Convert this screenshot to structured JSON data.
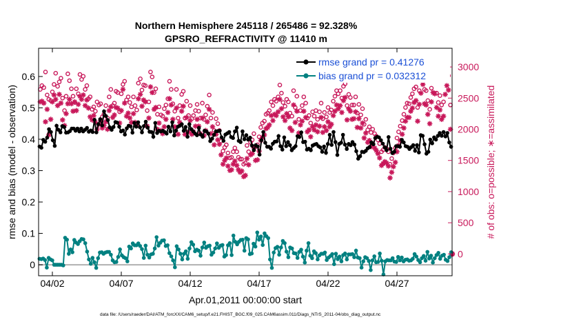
{
  "chart_data": {
    "type": "line",
    "title_line1": "Northern Hemisphere 245118 / 265486 = 92.328%",
    "title_line2": "GPSRO_REFRACTIVITY @ 11410 m",
    "xlabel": "Apr.01,2011 00:00:00 start",
    "ylabel_left": "rmse and bias (model - observation)",
    "ylabel_right": "# of obs: o=possible; ∗=assimilated",
    "footnote": "data file: /Users/raeder/DAI/ATM_forcXX/CAM6_setup/f.e21.FHIST_BGC.f09_025.CAM6assim.011/Diags_NTrS_2011-04/obs_diag_output.nc",
    "x_tick_labels": [
      "04/02",
      "04/07",
      "04/12",
      "04/17",
      "04/22",
      "04/27"
    ],
    "x_ticks_day": [
      2,
      7,
      12,
      17,
      22,
      27
    ],
    "xlim_day": [
      1.0,
      31.0
    ],
    "ylim_left": [
      -0.035,
      0.69
    ],
    "yticks_left": [
      0,
      0.1,
      0.2,
      0.3,
      0.4,
      0.5,
      0.6
    ],
    "ytick_labels_left": [
      "0",
      "0.1",
      "0.2",
      "0.3",
      "0.4",
      "0.5",
      "0.6"
    ],
    "ylim_right": [
      -350,
      3300
    ],
    "yticks_right": [
      0,
      500,
      1000,
      1500,
      2000,
      2500,
      3000
    ],
    "ytick_labels_right": [
      "0",
      "500",
      "1000",
      "1500",
      "2000",
      "2500",
      "3000"
    ],
    "legend": [
      {
        "name": "rmse grand pr = 0.41276",
        "color": "#000000"
      },
      {
        "name": "bias grand pr = 0.032312",
        "color": "#008080"
      }
    ],
    "colors": {
      "rmse": "#000000",
      "bias": "#008080",
      "obs": "#c8185a",
      "zero_line": "#b0b0b0"
    },
    "rmse_values": [
      0.377,
      0.373,
      0.398,
      0.392,
      0.405,
      0.432,
      0.423,
      0.397,
      0.379,
      0.443,
      0.43,
      0.422,
      0.442,
      0.439,
      0.421,
      0.422,
      0.426,
      0.434,
      0.434,
      0.427,
      0.434,
      0.425,
      0.434,
      0.425,
      0.43,
      0.436,
      0.424,
      0.428,
      0.423,
      0.462,
      0.422,
      0.448,
      0.464,
      0.444,
      0.489,
      0.474,
      0.461,
      0.438,
      0.43,
      0.439,
      0.455,
      0.453,
      0.44,
      0.425,
      0.428,
      0.415,
      0.435,
      0.443,
      0.441,
      0.421,
      0.452,
      0.44,
      0.454,
      0.438,
      0.422,
      0.442,
      0.456,
      0.437,
      0.424,
      0.423,
      0.408,
      0.452,
      0.42,
      0.427,
      0.425,
      0.427,
      0.423,
      0.418,
      0.44,
      0.425,
      0.454,
      0.412,
      0.428,
      0.44,
      0.443,
      0.448,
      0.427,
      0.439,
      0.408,
      0.448,
      0.432,
      0.425,
      0.418,
      0.413,
      0.436,
      0.415,
      0.408,
      0.427,
      0.425,
      0.418,
      0.394,
      0.402,
      0.414,
      0.425,
      0.426,
      0.427,
      0.406,
      0.395,
      0.415,
      0.419,
      0.423,
      0.407,
      0.404,
      0.425,
      0.437,
      0.395,
      0.391,
      0.425,
      0.4,
      0.413,
      0.399,
      0.405,
      0.38,
      0.365,
      0.381,
      0.377,
      0.351,
      0.397,
      0.423,
      0.389,
      0.376,
      0.376,
      0.37,
      0.386,
      0.392,
      0.393,
      0.41,
      0.378,
      0.367,
      0.406,
      0.378,
      0.391,
      0.381,
      0.365,
      0.372,
      0.378,
      0.41,
      0.407,
      0.422,
      0.391,
      0.392,
      0.367,
      0.37,
      0.365,
      0.38,
      0.383,
      0.385,
      0.378,
      0.374,
      0.36,
      0.377,
      0.357,
      0.385,
      0.414,
      0.382,
      0.423,
      0.391,
      0.35,
      0.385,
      0.389,
      0.414,
      0.383,
      0.369,
      0.385,
      0.381,
      0.391,
      0.383,
      0.362,
      0.338,
      0.346,
      0.36,
      0.359,
      0.363,
      0.371,
      0.375,
      0.39,
      0.384,
      0.404,
      0.408,
      0.406,
      0.397,
      0.386,
      0.374,
      0.365,
      0.407,
      0.37,
      0.356,
      0.36,
      0.378,
      0.378,
      0.376,
      0.398,
      0.39,
      0.378,
      0.376,
      0.369,
      0.375,
      0.381,
      0.363,
      0.381,
      0.358,
      0.413,
      0.411,
      0.384,
      0.354,
      0.36,
      0.399,
      0.387,
      0.406,
      0.399,
      0.411,
      0.42,
      0.411,
      0.423,
      0.409,
      0.42,
      0.39,
      0.376
    ],
    "bias_values": [
      0.019,
      0.018,
      0.02,
      0.015,
      -0.009,
      0.022,
      0.017,
      0.014,
      0.0,
      0.0,
      0.0,
      0.0,
      0.0,
      -0.002,
      0.086,
      0.08,
      0.035,
      0.049,
      0.04,
      0.079,
      0.071,
      0.066,
      0.075,
      0.082,
      0.081,
      0.069,
      0.042,
      0.017,
      0.003,
      0.022,
      0.008,
      -0.01,
      0.021,
      0.039,
      0.04,
      0.035,
      0.039,
      0.041,
      0.041,
      0.032,
      0.014,
      0.008,
      0.009,
      0.025,
      0.049,
      0.03,
      0.024,
      0.021,
      0.011,
      0.058,
      0.052,
      0.068,
      0.062,
      0.062,
      0.068,
      0.06,
      0.05,
      0.022,
      0.061,
      0.032,
      0.023,
      0.033,
      0.035,
      0.052,
      0.088,
      0.061,
      0.07,
      0.077,
      0.078,
      0.06,
      0.062,
      0.037,
      0.027,
      0.014,
      -0.008,
      0.059,
      0.049,
      0.035,
      0.017,
      0.035,
      0.043,
      0.019,
      0.052,
      0.072,
      0.064,
      0.043,
      0.048,
      0.045,
      0.029,
      0.055,
      0.071,
      0.054,
      0.059,
      0.061,
      0.032,
      0.039,
      0.052,
      0.068,
      0.054,
      0.061,
      0.063,
      0.026,
      0.031,
      0.062,
      0.069,
      0.031,
      0.093,
      0.073,
      0.065,
      0.073,
      0.079,
      0.08,
      0.045,
      0.085,
      0.081,
      0.034,
      0.036,
      0.067,
      0.058,
      0.103,
      0.08,
      0.09,
      0.063,
      0.1,
      0.091,
      0.085,
      0.017,
      -0.01,
      0.039,
      0.053,
      0.057,
      0.032,
      0.055,
      0.076,
      0.069,
      0.042,
      0.024,
      0.055,
      0.052,
      0.037,
      0.036,
      0.022,
      0.041,
      0.048,
      0.026,
      0.007,
      0.045,
      0.069,
      0.029,
      0.021,
      0.043,
      0.037,
      0.017,
      0.03,
      0.035,
      0.035,
      0.039,
      0.015,
      0.023,
      0.028,
      0.034,
      0.002,
      0.035,
      0.018,
      0.026,
      0.011,
      0.031,
      0.036,
      0.017,
      0.033,
      0.033,
      0.034,
      0.024,
      0.045,
      0.023,
      0.021,
      -0.009,
      0.011,
      0.024,
      0.021,
      0.012,
      -0.017,
      0.014,
      0.027,
      0.008,
      0.009,
      0.036,
      0.013,
      -0.031,
      0.011,
      0.015,
      0.014,
      0.014,
      0.021,
      0.01,
      0.009,
      0.025,
      0.014,
      0.023,
      0.011,
      0.016,
      0.017,
      0.013,
      0.014,
      0.019,
      0.034,
      0.026,
      0.015,
      0.008,
      0.021,
      0.028,
      0.013,
      0.041,
      0.02,
      0.029,
      0.007,
      0.021,
      0.031,
      0.038,
      0.019,
      0.029,
      0.032,
      0.016,
      0.012,
      0.024,
      0.04
    ],
    "possible_days": [
      1.12,
      1.24,
      1.38,
      1.5,
      1.62,
      1.74,
      1.88,
      2.0,
      2.12,
      2.24,
      2.38,
      2.5,
      2.62,
      2.74,
      2.88,
      3.0,
      3.12,
      3.24,
      3.38,
      3.5,
      3.62,
      3.74,
      3.88,
      4.0,
      4.12,
      4.24,
      4.38,
      4.5,
      4.62,
      4.74,
      4.88,
      5.0,
      5.12,
      5.24,
      5.38,
      5.5,
      5.62,
      5.74,
      5.88,
      6.0,
      6.12,
      6.24,
      6.38,
      6.5,
      6.62,
      6.74,
      6.88,
      7.0,
      7.12,
      7.24,
      7.38,
      7.5,
      7.62,
      7.74,
      7.88,
      8.0,
      8.12,
      8.24,
      8.38,
      8.5,
      8.62,
      8.74,
      8.88,
      9.0,
      9.12,
      9.24,
      9.38,
      9.5,
      9.62,
      9.74,
      9.88,
      10.0,
      10.12,
      10.24,
      10.38,
      10.5,
      10.62,
      10.74,
      10.88,
      11.0,
      11.12,
      11.24,
      11.38,
      11.5,
      11.62,
      11.74,
      11.88,
      12.0,
      12.12,
      12.24,
      12.38,
      12.5,
      12.62,
      12.74,
      12.88,
      13.0,
      13.12,
      13.24,
      13.38,
      13.5,
      13.62,
      13.74,
      13.88,
      14.0,
      14.12,
      14.24,
      14.38,
      14.5,
      14.62,
      14.74,
      14.88,
      15.0,
      15.12,
      15.24,
      15.38,
      15.5,
      15.62,
      15.74,
      15.88,
      16.0,
      16.12,
      16.24,
      16.38,
      16.5,
      16.62,
      16.74,
      16.88,
      17.0,
      17.12,
      17.24,
      17.38,
      17.5,
      17.62,
      17.74,
      17.88,
      18.0,
      18.12,
      18.24,
      18.38,
      18.5,
      18.62,
      18.74,
      18.88,
      19.0,
      19.12,
      19.24,
      19.38,
      19.5,
      19.62,
      19.74,
      19.88,
      20.0,
      20.12,
      20.24,
      20.38,
      20.5,
      20.62,
      20.74,
      20.88,
      21.0,
      21.12,
      21.24,
      21.38,
      21.5,
      21.62,
      21.74,
      21.88,
      22.0,
      22.12,
      22.24,
      22.38,
      22.5,
      22.62,
      22.74,
      22.88,
      23.0,
      23.12,
      23.24,
      23.38,
      23.5,
      23.62,
      23.74,
      23.88,
      24.0,
      24.12,
      24.24,
      24.38,
      24.5,
      24.62,
      24.74,
      24.88,
      25.0,
      25.12,
      25.24,
      25.38,
      25.5,
      25.62,
      25.74,
      25.88,
      26.0,
      26.12,
      26.24,
      26.38,
      26.5,
      26.62,
      26.74,
      26.88,
      27.0,
      27.12,
      27.24,
      27.38,
      27.5,
      27.62,
      27.74,
      27.88,
      28.0,
      28.12,
      28.24,
      28.38,
      28.5,
      28.62,
      28.74,
      28.88,
      29.0,
      29.12,
      29.24,
      29.38,
      29.5,
      29.62,
      29.74,
      29.88,
      30.0,
      30.12,
      30.24,
      30.38,
      30.5,
      30.62,
      30.74,
      30.88
    ],
    "possible_values": [
      2640,
      2700,
      2670,
      2920,
      2550,
      2480,
      2460,
      2600,
      2720,
      2900,
      2690,
      2760,
      2820,
      2500,
      2300,
      2530,
      2890,
      2780,
      2650,
      2530,
      2430,
      2650,
      2570,
      2880,
      2800,
      2850,
      2640,
      2700,
      2490,
      2520,
      2320,
      2360,
      2290,
      2440,
      2390,
      2410,
      2200,
      2240,
      2380,
      2180,
      2520,
      2640,
      2380,
      2420,
      2610,
      2590,
      2280,
      2570,
      2720,
      2770,
      2470,
      2520,
      2430,
      2360,
      2520,
      2380,
      2310,
      2740,
      2810,
      2630,
      2710,
      2700,
      2300,
      2440,
      2920,
      2840,
      2590,
      2650,
      2240,
      2360,
      2230,
      2210,
      2330,
      2390,
      2490,
      2770,
      2640,
      2410,
      2290,
      2640,
      2180,
      2380,
      2560,
      2610,
      2180,
      2450,
      2220,
      2380,
      2170,
      2220,
      2300,
      2400,
      2290,
      2180,
      2420,
      2160,
      2230,
      2370,
      2550,
      2180,
      2270,
      1980,
      2170,
      2090,
      1980,
      1810,
      1650,
      1710,
      1750,
      1620,
      1540,
      1550,
      1640,
      1700,
      1640,
      1550,
      1520,
      1520,
      1440,
      1460,
      1740,
      1640,
      1790,
      1830,
      1930,
      1720,
      1750,
      1880,
      2030,
      2100,
      2130,
      2240,
      2260,
      2300,
      2440,
      2380,
      2480,
      2450,
      2520,
      2710,
      2580,
      2430,
      2370,
      2480,
      2440,
      2260,
      2210,
      2620,
      2350,
      2530,
      2160,
      2300,
      2380,
      2520,
      2420,
      2180,
      2220,
      2100,
      2280,
      2210,
      2300,
      2160,
      2280,
      2420,
      2170,
      2270,
      2200,
      2350,
      2270,
      2310,
      2450,
      2530,
      2620,
      2570,
      2620,
      2500,
      2690,
      2730,
      2380,
      2560,
      2510,
      2390,
      2390,
      2520,
      2260,
      2400,
      2230,
      2330,
      2080,
      2160,
      1990,
      2040,
      1950,
      2000,
      1930,
      1890,
      1830,
      1770,
      1640,
      1670,
      1710,
      1690,
      1640,
      1440,
      1530,
      1620,
      1700,
      1860,
      1960,
      2050,
      2140,
      2240,
      2350,
      2420,
      2410,
      2510,
      2570,
      2650,
      2680,
      2350,
      2620,
      2810,
      2950,
      2640,
      2620,
      2460,
      2320,
      2660,
      2820,
      2790,
      2580,
      2430,
      2540,
      2390,
      2440,
      2800,
      2930,
      2860,
      2390
    ],
    "assimilated_days": [
      1.12,
      1.24,
      1.38,
      1.5,
      1.62,
      1.74,
      1.88,
      2.0,
      2.12,
      2.24,
      2.38,
      2.5,
      2.62,
      2.74,
      2.88,
      3.0,
      3.12,
      3.24,
      3.38,
      3.5,
      3.62,
      3.74,
      3.88,
      4.0,
      4.12,
      4.24,
      4.38,
      4.5,
      4.62,
      4.74,
      4.88,
      5.0,
      5.12,
      5.24,
      5.38,
      5.5,
      5.62,
      5.74,
      5.88,
      6.0,
      6.12,
      6.24,
      6.38,
      6.5,
      6.62,
      6.74,
      6.88,
      7.0,
      7.12,
      7.24,
      7.38,
      7.5,
      7.62,
      7.74,
      7.88,
      8.0,
      8.12,
      8.24,
      8.38,
      8.5,
      8.62,
      8.74,
      8.88,
      9.0,
      9.12,
      9.24,
      9.38,
      9.5,
      9.62,
      9.74,
      9.88,
      10.0,
      10.12,
      10.24,
      10.38,
      10.5,
      10.62,
      10.74,
      10.88,
      11.0,
      11.12,
      11.24,
      11.38,
      11.5,
      11.62,
      11.74,
      11.88,
      12.0,
      12.12,
      12.24,
      12.38,
      12.5,
      12.62,
      12.74,
      12.88,
      13.0,
      13.12,
      13.24,
      13.38,
      13.5,
      13.62,
      13.74,
      13.88,
      14.0,
      14.12,
      14.24,
      14.38,
      14.5,
      14.62,
      14.74,
      14.88,
      15.0,
      15.12,
      15.24,
      15.38,
      15.5,
      15.62,
      15.74,
      15.88,
      16.0,
      16.12,
      16.24,
      16.38,
      16.5,
      16.62,
      16.74,
      16.88,
      17.0,
      17.12,
      17.24,
      17.38,
      17.5,
      17.62,
      17.74,
      17.88,
      18.0,
      18.12,
      18.24,
      18.38,
      18.5,
      18.62,
      18.74,
      18.88,
      19.0,
      19.12,
      19.24,
      19.38,
      19.5,
      19.62,
      19.74,
      19.88,
      20.0,
      20.12,
      20.24,
      20.38,
      20.5,
      20.62,
      20.74,
      20.88,
      21.0,
      21.12,
      21.24,
      21.38,
      21.5,
      21.62,
      21.74,
      21.88,
      22.0,
      22.12,
      22.24,
      22.38,
      22.5,
      22.62,
      22.74,
      22.88,
      23.0,
      23.12,
      23.24,
      23.38,
      23.5,
      23.62,
      23.74,
      23.88,
      24.0,
      24.12,
      24.24,
      24.38,
      24.5,
      24.62,
      24.74,
      24.88,
      25.0,
      25.12,
      25.24,
      25.38,
      25.5,
      25.62,
      25.74,
      25.88,
      26.0,
      26.12,
      26.24,
      26.38,
      26.5,
      26.62,
      26.74,
      26.88,
      27.0,
      27.12,
      27.24,
      27.38,
      27.5,
      27.62,
      27.74,
      27.88,
      28.0,
      28.12,
      28.24,
      28.38,
      28.5,
      28.62,
      28.74,
      28.88,
      29.0,
      29.12,
      29.24,
      29.38,
      29.5,
      29.62,
      29.74,
      29.88,
      30.0,
      30.12,
      30.24,
      30.38,
      30.5,
      30.62,
      30.74,
      30.88
    ],
    "assimilated_values": [
      2440,
      2450,
      2420,
      2120,
      2320,
      1910,
      2160,
      2440,
      2550,
      2480,
      2380,
      2560,
      2420,
      2150,
      2060,
      2250,
      2410,
      2480,
      2410,
      2290,
      2440,
      2300,
      2400,
      2530,
      2480,
      2550,
      2380,
      2470,
      2340,
      2200,
      2150,
      2220,
      2110,
      2000,
      2080,
      2140,
      2020,
      2060,
      2120,
      2000,
      2300,
      2360,
      2190,
      2230,
      2350,
      2340,
      2100,
      2300,
      2640,
      2420,
      2210,
      2260,
      2180,
      2110,
      2250,
      2110,
      2060,
      2490,
      2560,
      2370,
      2470,
      2440,
      2050,
      2180,
      2680,
      2590,
      2320,
      2350,
      2000,
      2100,
      1980,
      1930,
      2040,
      2160,
      2270,
      2490,
      2390,
      2160,
      2040,
      2340,
      1920,
      2110,
      2290,
      2370,
      1920,
      2190,
      1960,
      2140,
      1920,
      1960,
      2050,
      2160,
      2050,
      1930,
      2180,
      1900,
      1980,
      2120,
      2320,
      1930,
      2040,
      1750,
      1920,
      1830,
      1760,
      1590,
      1440,
      1500,
      1540,
      1410,
      1340,
      1350,
      1440,
      1490,
      1420,
      1350,
      1310,
      1330,
      1240,
      1260,
      1530,
      1430,
      1590,
      1610,
      1700,
      1500,
      1510,
      1650,
      1820,
      1870,
      1910,
      2010,
      2030,
      2070,
      2220,
      2140,
      2240,
      2220,
      2280,
      2480,
      2330,
      2200,
      2140,
      2250,
      2200,
      2020,
      1980,
      2390,
      2110,
      2290,
      1940,
      2070,
      2130,
      2290,
      2190,
      1960,
      1990,
      1880,
      2040,
      1990,
      2070,
      1960,
      2050,
      2190,
      1950,
      2040,
      1980,
      2120,
      2040,
      2080,
      2220,
      2290,
      2390,
      2330,
      2380,
      2270,
      2460,
      2510,
      2150,
      2330,
      2290,
      2160,
      2170,
      2280,
      2030,
      2170,
      2020,
      2100,
      1860,
      1940,
      1790,
      1820,
      1720,
      1770,
      1700,
      1660,
      1610,
      1540,
      1420,
      1450,
      1480,
      1460,
      1410,
      1220,
      1310,
      1400,
      1470,
      1640,
      1740,
      1820,
      1920,
      2020,
      2130,
      2190,
      2190,
      2290,
      2340,
      2430,
      2460,
      2130,
      2400,
      2580,
      2720,
      2410,
      2390,
      2240,
      2090,
      2440,
      2590,
      2570,
      2350,
      2210,
      2310,
      2160,
      2210,
      2560,
      2700,
      2630,
      2000
    ],
    "end_marker": {
      "day": 31.0,
      "value": 0
    }
  }
}
